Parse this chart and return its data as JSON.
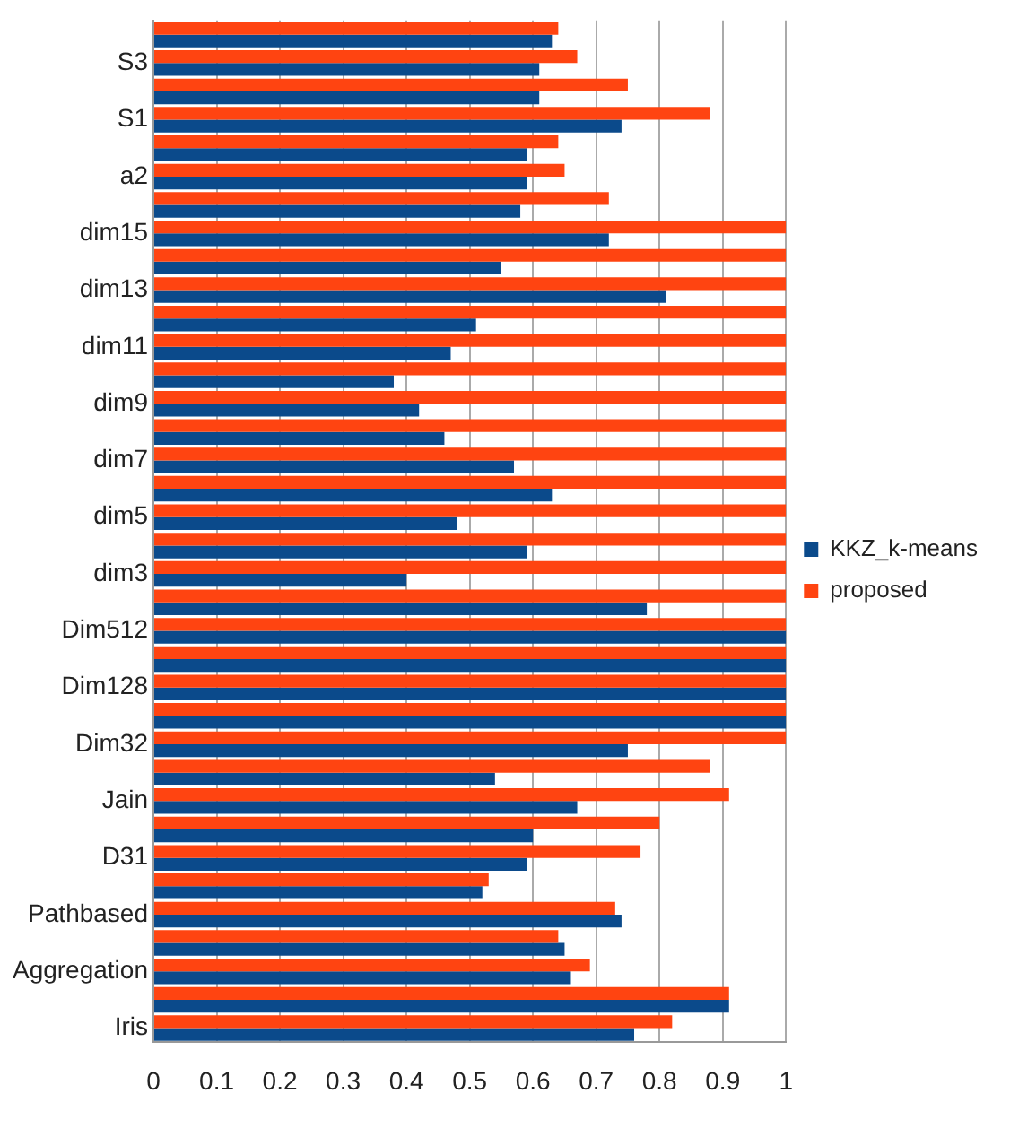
{
  "chart_data": {
    "type": "bar",
    "orientation": "horizontal",
    "categories": [
      null,
      "S3",
      null,
      "S1",
      null,
      "a2",
      null,
      "dim15",
      null,
      "dim13",
      null,
      "dim11",
      null,
      "dim9",
      null,
      "dim7",
      null,
      "dim5",
      null,
      "dim3",
      null,
      "Dim512",
      null,
      "Dim128",
      null,
      "Dim32",
      null,
      "Jain",
      null,
      "D31",
      null,
      "Pathbased",
      null,
      "Aggregation",
      null,
      "Iris"
    ],
    "series": [
      {
        "name": "KKZ_k-means",
        "color": "#0b4a8b",
        "values": [
          0.63,
          0.61,
          0.61,
          0.74,
          0.59,
          0.59,
          0.58,
          0.72,
          0.55,
          0.81,
          0.51,
          0.47,
          0.38,
          0.42,
          0.46,
          0.57,
          0.63,
          0.48,
          0.59,
          0.4,
          0.78,
          1,
          1,
          1,
          1,
          0.75,
          0.54,
          0.67,
          0.6,
          0.59,
          0.52,
          0.74,
          0.65,
          0.66,
          0.91,
          0.76
        ]
      },
      {
        "name": "proposed",
        "color": "#ff4411",
        "values": [
          0.64,
          0.67,
          0.75,
          0.88,
          0.64,
          0.65,
          0.72,
          1,
          1,
          1,
          1,
          1,
          1,
          1,
          1,
          1,
          1,
          1,
          1,
          1,
          1,
          1,
          1,
          1,
          1,
          1,
          0.88,
          0.91,
          0.8,
          0.77,
          0.53,
          0.73,
          0.64,
          0.69,
          0.91,
          0.82
        ]
      }
    ],
    "xlim": [
      0,
      1
    ],
    "xticks": [
      0,
      0.1,
      0.2,
      0.3,
      0.4,
      0.5,
      0.6,
      0.7,
      0.8,
      0.9,
      1
    ],
    "grid": "x",
    "legend": "right"
  }
}
